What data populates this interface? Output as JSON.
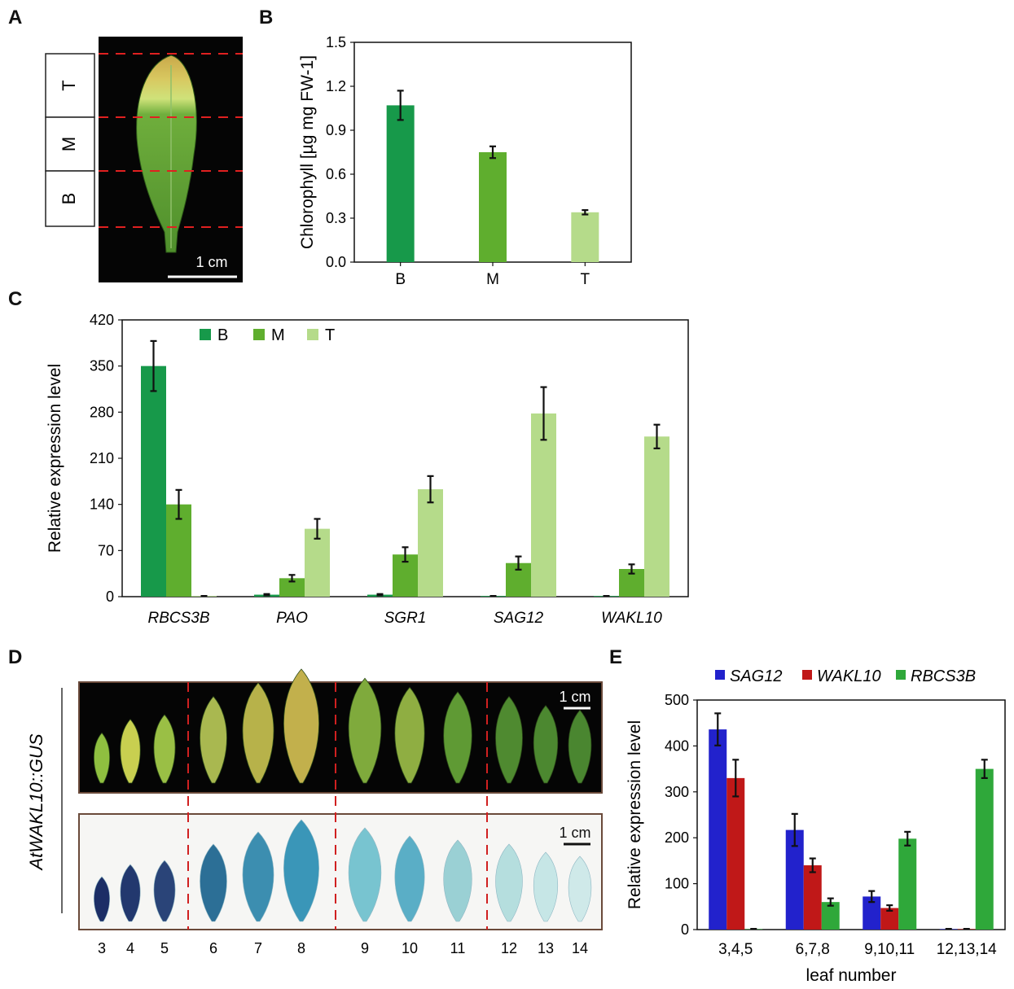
{
  "panels": {
    "A": {
      "letter": "A",
      "regions": [
        "T",
        "M",
        "B"
      ],
      "scale_bar": "1 cm"
    },
    "B": {
      "letter": "B"
    },
    "C": {
      "letter": "C"
    },
    "D": {
      "letter": "D",
      "genotype_label": "AtWAKL10::GUS",
      "scale_bar_top": "1 cm",
      "scale_bar_bottom": "1 cm",
      "leaf_numbers": [
        "3",
        "4",
        "5",
        "6",
        "7",
        "8",
        "9",
        "10",
        "11",
        "12",
        "13",
        "14"
      ]
    },
    "E": {
      "letter": "E"
    }
  },
  "colors": {
    "B": "#17994a",
    "M": "#5fae2e",
    "T": "#b5db8a",
    "SAG12": "#2222cc",
    "WAKL10": "#c01818",
    "RBCS3B": "#2fa83a"
  },
  "chart_data": [
    {
      "id": "B",
      "type": "bar",
      "title": "",
      "xlabel": "",
      "ylabel": "Chlorophyll [µg mg FW-1]",
      "ylim": [
        0,
        1.5
      ],
      "yticks": [
        "0.0",
        "0.3",
        "0.6",
        "0.9",
        "1.2",
        "1.5"
      ],
      "categories": [
        "B",
        "M",
        "T"
      ],
      "values": [
        1.07,
        0.75,
        0.34
      ],
      "errors": [
        0.1,
        0.04,
        0.015
      ]
    },
    {
      "id": "C",
      "type": "bar",
      "title": "",
      "xlabel": "",
      "ylabel": "Relative expression level",
      "ylim": [
        0,
        420
      ],
      "yticks": [
        "0",
        "70",
        "140",
        "210",
        "280",
        "350",
        "420"
      ],
      "legend": {
        "position": "top-left",
        "entries": [
          "B",
          "M",
          "T"
        ]
      },
      "categories": [
        "RBCS3B",
        "PAO",
        "SGR1",
        "SAG12",
        "WAKL10"
      ],
      "series": [
        {
          "name": "B",
          "values": [
            350,
            3,
            3,
            1,
            1
          ],
          "errors": [
            38,
            1,
            1,
            0,
            0
          ]
        },
        {
          "name": "M",
          "values": [
            140,
            28,
            64,
            51,
            42
          ],
          "errors": [
            22,
            5,
            11,
            10,
            7
          ]
        },
        {
          "name": "T",
          "values": [
            1,
            103,
            163,
            278,
            243
          ],
          "errors": [
            0,
            15,
            20,
            40,
            18
          ]
        }
      ]
    },
    {
      "id": "E",
      "type": "bar",
      "title": "",
      "xlabel": "leaf number",
      "ylabel": "Relative expression level",
      "ylim": [
        0,
        500
      ],
      "yticks": [
        "0",
        "100",
        "200",
        "300",
        "400",
        "500"
      ],
      "legend": {
        "position": "top",
        "entries": [
          "SAG12",
          "WAKL10",
          "RBCS3B"
        ]
      },
      "categories": [
        "3,4,5",
        "6,7,8",
        "9,10,11",
        "12,13,14"
      ],
      "series": [
        {
          "name": "SAG12",
          "values": [
            436,
            217,
            72,
            1
          ],
          "errors": [
            35,
            35,
            12,
            0
          ]
        },
        {
          "name": "WAKL10",
          "values": [
            330,
            140,
            47,
            1
          ],
          "errors": [
            40,
            15,
            6,
            0
          ]
        },
        {
          "name": "RBCS3B",
          "values": [
            1,
            60,
            198,
            350
          ],
          "errors": [
            0,
            8,
            15,
            20
          ]
        }
      ]
    }
  ]
}
